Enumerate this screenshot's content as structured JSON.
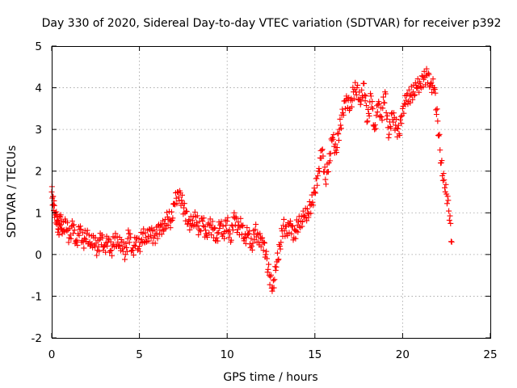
{
  "chart_data": {
    "type": "scatter",
    "title": "Day 330 of 2020, Sidereal Day-to-day VTEC variation (SDTVAR) for receiver p392",
    "xlabel": "GPS time / hours",
    "ylabel": "SDTVAR / TECUs",
    "xlim": [
      0,
      25
    ],
    "ylim": [
      -2,
      5
    ],
    "xticks": [
      "0",
      "5",
      "10",
      "15",
      "20",
      "25"
    ],
    "yticks": [
      "-2",
      "-1",
      "0",
      "1",
      "2",
      "3",
      "4",
      "5"
    ],
    "grid": true,
    "color": "#ff0000",
    "marker": "plus",
    "series": [
      {
        "name": "SDTVAR p392",
        "x": [
          0.0,
          0.1,
          0.2,
          0.3,
          0.4,
          0.5,
          0.6,
          0.8,
          1.0,
          1.2,
          1.4,
          1.6,
          1.8,
          2.0,
          2.2,
          2.4,
          2.6,
          2.8,
          3.0,
          3.2,
          3.4,
          3.6,
          3.8,
          4.0,
          4.2,
          4.4,
          4.6,
          4.8,
          5.0,
          5.2,
          5.4,
          5.6,
          5.8,
          6.0,
          6.2,
          6.4,
          6.6,
          6.8,
          7.0,
          7.2,
          7.4,
          7.6,
          7.8,
          8.0,
          8.2,
          8.4,
          8.6,
          8.8,
          9.0,
          9.2,
          9.4,
          9.6,
          9.8,
          10.0,
          10.2,
          10.4,
          10.6,
          10.8,
          11.0,
          11.2,
          11.4,
          11.6,
          11.8,
          12.0,
          12.2,
          12.4,
          12.6,
          12.8,
          13.0,
          13.2,
          13.4,
          13.6,
          13.8,
          14.0,
          14.2,
          14.4,
          14.6,
          14.8,
          15.0,
          15.2,
          15.4,
          15.6,
          15.8,
          16.0,
          16.2,
          16.4,
          16.6,
          16.8,
          17.0,
          17.2,
          17.4,
          17.6,
          17.8,
          18.0,
          18.2,
          18.4,
          18.6,
          18.8,
          19.0,
          19.2,
          19.4,
          19.6,
          19.8,
          20.0,
          20.2,
          20.4,
          20.6,
          20.8,
          21.0,
          21.2,
          21.4,
          21.6,
          21.8,
          22.0,
          22.2,
          22.4,
          22.6,
          22.8
        ],
        "y": [
          1.5,
          1.2,
          1.0,
          0.8,
          0.6,
          0.9,
          0.5,
          0.8,
          0.4,
          0.7,
          0.3,
          0.6,
          0.3,
          0.5,
          0.2,
          0.4,
          0.1,
          0.4,
          0.2,
          0.3,
          0.1,
          0.4,
          0.2,
          0.3,
          0.0,
          0.5,
          0.1,
          0.3,
          0.2,
          0.5,
          0.3,
          0.6,
          0.4,
          0.5,
          0.7,
          0.6,
          0.9,
          0.8,
          1.2,
          1.5,
          1.3,
          1.0,
          0.8,
          0.7,
          0.9,
          0.6,
          0.8,
          0.5,
          0.7,
          0.6,
          0.4,
          0.7,
          0.5,
          0.8,
          0.3,
          1.0,
          0.6,
          0.7,
          0.4,
          0.5,
          0.2,
          0.6,
          0.3,
          0.4,
          0.0,
          -0.5,
          -0.8,
          -0.3,
          0.2,
          0.7,
          0.5,
          0.8,
          0.4,
          0.7,
          0.8,
          0.9,
          1.0,
          1.2,
          1.5,
          2.0,
          2.5,
          1.8,
          2.2,
          2.8,
          2.5,
          3.0,
          3.4,
          3.8,
          3.5,
          3.9,
          4.0,
          3.6,
          4.1,
          3.2,
          3.8,
          3.0,
          3.6,
          3.3,
          3.9,
          2.8,
          3.4,
          3.1,
          2.9,
          3.5,
          3.7,
          3.8,
          3.9,
          4.0,
          4.1,
          4.2,
          4.3,
          4.1,
          4.0,
          3.2,
          2.2,
          1.6,
          1.3,
          0.3
        ]
      }
    ]
  }
}
